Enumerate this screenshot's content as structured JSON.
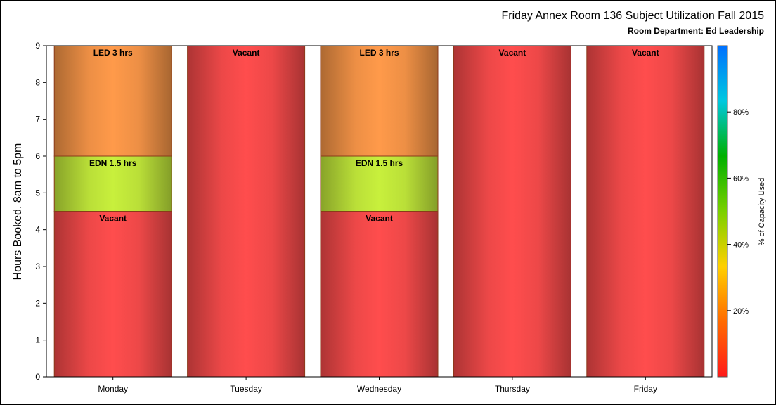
{
  "chart_data": {
    "type": "bar",
    "stacked": true,
    "title": "Friday Annex Room 136 Subject Utilization Fall 2015",
    "subtitle": "Room Department:  Ed Leadership",
    "ylabel": "Hours Booked, 8am to 5pm",
    "xlabel": "",
    "ylim": [
      0,
      9
    ],
    "yticks": [
      "0",
      "1",
      "2",
      "3",
      "4",
      "5",
      "6",
      "7",
      "8",
      "9"
    ],
    "categories": [
      "Monday",
      "Tuesday",
      "Wednesday",
      "Thursday",
      "Friday"
    ],
    "bars": [
      {
        "category": "Monday",
        "segments": [
          {
            "label": "Vacant",
            "value": 4.5,
            "capacity_pct": 0
          },
          {
            "label": "EDN 1.5 hrs",
            "value": 1.5,
            "capacity_pct": 55
          },
          {
            "label": "LED 3 hrs",
            "value": 3,
            "capacity_pct": 35
          }
        ]
      },
      {
        "category": "Tuesday",
        "segments": [
          {
            "label": "Vacant",
            "value": 9,
            "capacity_pct": 0
          }
        ]
      },
      {
        "category": "Wednesday",
        "segments": [
          {
            "label": "Vacant",
            "value": 4.5,
            "capacity_pct": 0
          },
          {
            "label": "EDN 1.5 hrs",
            "value": 1.5,
            "capacity_pct": 55
          },
          {
            "label": "LED 3 hrs",
            "value": 3,
            "capacity_pct": 35
          }
        ]
      },
      {
        "category": "Thursday",
        "segments": [
          {
            "label": "Vacant",
            "value": 9,
            "capacity_pct": 0
          }
        ]
      },
      {
        "category": "Friday",
        "segments": [
          {
            "label": "Vacant",
            "value": 9,
            "capacity_pct": 0
          }
        ]
      }
    ],
    "colorbar": {
      "label": "% of Capacity Used",
      "ticks": [
        "20%",
        "40%",
        "60%",
        "80%"
      ],
      "tick_values": [
        20,
        40,
        60,
        80
      ],
      "range": [
        0,
        100
      ],
      "colors": [
        "#ff1a1a",
        "#ff6a00",
        "#ffd000",
        "#7ad000",
        "#00b000",
        "#00c8e0",
        "#0070ff"
      ]
    },
    "segment_colors": {
      "Vacant": "#ff4d4d",
      "EDN 1.5 hrs": "#c8f03c",
      "LED 3 hrs": "#ff9a4a"
    },
    "grid": false,
    "legend": "none"
  }
}
